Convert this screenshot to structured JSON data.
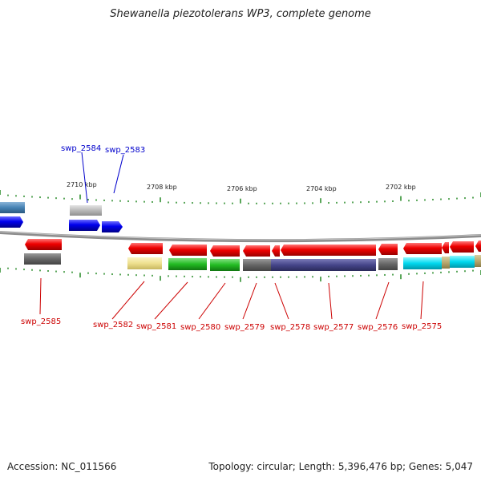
{
  "title": "Shewanella piezotolerans WP3, complete genome",
  "footer": {
    "accession": "Accession: NC_011566",
    "summary": "Topology: circular; Length: 5,396,476 bp; Genes: 5,047"
  },
  "scale_ticks": [
    "2710 kbp",
    "2708 kbp",
    "2706 kbp",
    "2704 kbp",
    "2702 kbp"
  ],
  "gene_labels": [
    {
      "name": "swp_2584",
      "strand": "forward"
    },
    {
      "name": "swp_2583",
      "strand": "forward"
    },
    {
      "name": "swp_2585",
      "strand": "reverse"
    },
    {
      "name": "swp_2582",
      "strand": "reverse"
    },
    {
      "name": "swp_2581",
      "strand": "reverse"
    },
    {
      "name": "swp_2580",
      "strand": "reverse"
    },
    {
      "name": "swp_2579",
      "strand": "reverse"
    },
    {
      "name": "swp_2578",
      "strand": "reverse"
    },
    {
      "name": "swp_2577",
      "strand": "reverse"
    },
    {
      "name": "swp_2576",
      "strand": "reverse"
    },
    {
      "name": "swp_2575",
      "strand": "reverse"
    }
  ],
  "colors": {
    "forward_label": "#0000cc",
    "reverse_label": "#cc0000",
    "forward_gene": "#0000ee",
    "reverse_gene": "#ee0000",
    "backbone": "#888888",
    "tick": "#228822"
  }
}
